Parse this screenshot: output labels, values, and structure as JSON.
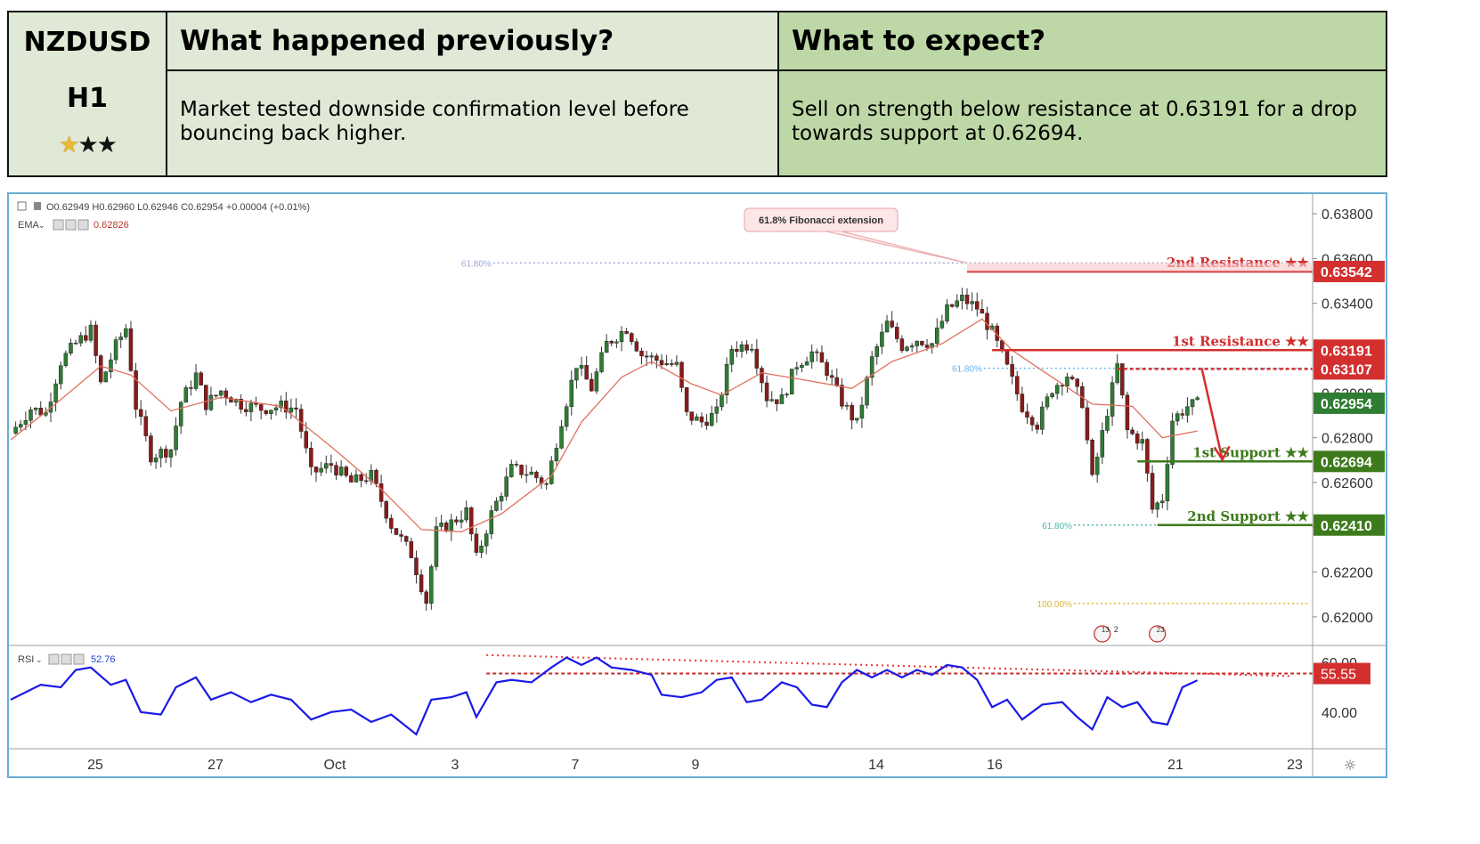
{
  "header": {
    "symbol": "NZDUSD",
    "timeframe": "H1",
    "stars": {
      "filled_gold": 1,
      "black": 2
    },
    "previous": {
      "title": "What happened previously?",
      "text": "Market tested downside confirmation level before bouncing back higher."
    },
    "expect": {
      "title": "What to expect?",
      "text": "Sell on strength below resistance at 0.63191 for a drop towards support at 0.62694."
    }
  },
  "chart_data": {
    "type": "candlestick",
    "symbol": "NZDUSD",
    "timeframe": "H1",
    "ohlc_label": "O0.62949  H0.62960  L0.62946  C0.62954  +0.00004 (+0.01%)",
    "ema_label": "EMA",
    "ema_value": "0.62826",
    "rsi_label": "RSI",
    "rsi_value": "52.76",
    "x_ticks": [
      "25",
      "27",
      "Oct",
      "3",
      "7",
      "9",
      "14",
      "16",
      "21",
      "23"
    ],
    "y_ticks": [
      "0.63800",
      "0.63600",
      "0.63400",
      "0.63200",
      "0.63000",
      "0.62800",
      "0.62600",
      "0.62400",
      "0.62200",
      "0.62000"
    ],
    "y_tick_values": [
      0.638,
      0.636,
      0.634,
      0.632,
      0.63,
      0.628,
      0.626,
      0.624,
      0.622,
      0.62
    ],
    "ylim": [
      0.6194,
      0.6384
    ],
    "rsi_ticks": [
      "60.00",
      "40.00"
    ],
    "rsi_tick_values": [
      60,
      40
    ],
    "rsi_ylim": [
      27,
      64
    ],
    "price_path": [
      {
        "t": 0,
        "p": 0.6282
      },
      {
        "t": 2,
        "p": 0.6293
      },
      {
        "t": 3.5,
        "p": 0.6291
      },
      {
        "t": 5,
        "p": 0.6314
      },
      {
        "t": 6.5,
        "p": 0.6322
      },
      {
        "t": 8,
        "p": 0.6328
      },
      {
        "t": 9,
        "p": 0.6304
      },
      {
        "t": 10.5,
        "p": 0.6321
      },
      {
        "t": 11.5,
        "p": 0.6329
      },
      {
        "t": 12.5,
        "p": 0.6294
      },
      {
        "t": 14,
        "p": 0.6272
      },
      {
        "t": 16,
        "p": 0.6275
      },
      {
        "t": 17,
        "p": 0.6296
      },
      {
        "t": 18.5,
        "p": 0.6308
      },
      {
        "t": 19.5,
        "p": 0.6295
      },
      {
        "t": 21,
        "p": 0.6301
      },
      {
        "t": 23,
        "p": 0.6295
      },
      {
        "t": 25,
        "p": 0.6293
      },
      {
        "t": 27,
        "p": 0.6294
      },
      {
        "t": 28.5,
        "p": 0.6293
      },
      {
        "t": 30,
        "p": 0.6264
      },
      {
        "t": 32,
        "p": 0.6268
      },
      {
        "t": 34,
        "p": 0.626
      },
      {
        "t": 36,
        "p": 0.6263
      },
      {
        "t": 38,
        "p": 0.6241
      },
      {
        "t": 40,
        "p": 0.6228
      },
      {
        "t": 41.5,
        "p": 0.6207
      },
      {
        "t": 42.5,
        "p": 0.6238
      },
      {
        "t": 44,
        "p": 0.6242
      },
      {
        "t": 45.5,
        "p": 0.6247
      },
      {
        "t": 46.5,
        "p": 0.6226
      },
      {
        "t": 48,
        "p": 0.6246
      },
      {
        "t": 50,
        "p": 0.6266
      },
      {
        "t": 52,
        "p": 0.6264
      },
      {
        "t": 53.5,
        "p": 0.6259
      },
      {
        "t": 55,
        "p": 0.6288
      },
      {
        "t": 56.5,
        "p": 0.6313
      },
      {
        "t": 58,
        "p": 0.6302
      },
      {
        "t": 59.5,
        "p": 0.6322
      },
      {
        "t": 61.5,
        "p": 0.6329
      },
      {
        "t": 63,
        "p": 0.6317
      },
      {
        "t": 65,
        "p": 0.6314
      },
      {
        "t": 66.5,
        "p": 0.6312
      },
      {
        "t": 67.5,
        "p": 0.629
      },
      {
        "t": 69,
        "p": 0.6287
      },
      {
        "t": 70.5,
        "p": 0.6291
      },
      {
        "t": 72,
        "p": 0.632
      },
      {
        "t": 74,
        "p": 0.6322
      },
      {
        "t": 75.5,
        "p": 0.6298
      },
      {
        "t": 77,
        "p": 0.6297
      },
      {
        "t": 78.5,
        "p": 0.6313
      },
      {
        "t": 80,
        "p": 0.6318
      },
      {
        "t": 81.5,
        "p": 0.631
      },
      {
        "t": 83,
        "p": 0.6296
      },
      {
        "t": 84.5,
        "p": 0.6286
      },
      {
        "t": 86,
        "p": 0.6315
      },
      {
        "t": 87.5,
        "p": 0.6331
      },
      {
        "t": 89,
        "p": 0.6321
      },
      {
        "t": 90.5,
        "p": 0.6324
      },
      {
        "t": 92,
        "p": 0.6322
      },
      {
        "t": 93.5,
        "p": 0.6337
      },
      {
        "t": 95,
        "p": 0.6342
      },
      {
        "t": 96.5,
        "p": 0.6338
      },
      {
        "t": 98,
        "p": 0.6327
      },
      {
        "t": 99.5,
        "p": 0.6311
      },
      {
        "t": 101,
        "p": 0.6294
      },
      {
        "t": 102.5,
        "p": 0.6286
      },
      {
        "t": 104,
        "p": 0.6302
      },
      {
        "t": 105.5,
        "p": 0.6308
      },
      {
        "t": 107,
        "p": 0.6296
      },
      {
        "t": 108,
        "p": 0.6261
      },
      {
        "t": 109.5,
        "p": 0.6292
      },
      {
        "t": 110.5,
        "p": 0.6312
      },
      {
        "t": 111.5,
        "p": 0.6283
      },
      {
        "t": 113,
        "p": 0.6278
      },
      {
        "t": 114,
        "p": 0.6248
      },
      {
        "t": 115,
        "p": 0.6253
      },
      {
        "t": 116,
        "p": 0.6288
      },
      {
        "t": 117.5,
        "p": 0.6294
      },
      {
        "t": 118.5,
        "p": 0.6295
      }
    ],
    "ema_path": [
      {
        "t": 0,
        "p": 0.6279
      },
      {
        "t": 5,
        "p": 0.6297
      },
      {
        "t": 9,
        "p": 0.6312
      },
      {
        "t": 12,
        "p": 0.6308
      },
      {
        "t": 16,
        "p": 0.6292
      },
      {
        "t": 21,
        "p": 0.6298
      },
      {
        "t": 27,
        "p": 0.6294
      },
      {
        "t": 32,
        "p": 0.6276
      },
      {
        "t": 37,
        "p": 0.6257
      },
      {
        "t": 41,
        "p": 0.6239
      },
      {
        "t": 45,
        "p": 0.6238
      },
      {
        "t": 49,
        "p": 0.6246
      },
      {
        "t": 54,
        "p": 0.6263
      },
      {
        "t": 57,
        "p": 0.6287
      },
      {
        "t": 61,
        "p": 0.6307
      },
      {
        "t": 64,
        "p": 0.6314
      },
      {
        "t": 68,
        "p": 0.6304
      },
      {
        "t": 71,
        "p": 0.6299
      },
      {
        "t": 75,
        "p": 0.6309
      },
      {
        "t": 79,
        "p": 0.6306
      },
      {
        "t": 84,
        "p": 0.6302
      },
      {
        "t": 88,
        "p": 0.6314
      },
      {
        "t": 93,
        "p": 0.6322
      },
      {
        "t": 97,
        "p": 0.6333
      },
      {
        "t": 100,
        "p": 0.6319
      },
      {
        "t": 104,
        "p": 0.6307
      },
      {
        "t": 108,
        "p": 0.6295
      },
      {
        "t": 112,
        "p": 0.6294
      },
      {
        "t": 115,
        "p": 0.628
      },
      {
        "t": 118.5,
        "p": 0.6283
      }
    ],
    "rsi_path": [
      {
        "t": 0,
        "p": 45
      },
      {
        "t": 3,
        "p": 51
      },
      {
        "t": 5,
        "p": 50
      },
      {
        "t": 6.5,
        "p": 57
      },
      {
        "t": 8,
        "p": 58
      },
      {
        "t": 10,
        "p": 51
      },
      {
        "t": 11.5,
        "p": 53
      },
      {
        "t": 13,
        "p": 40
      },
      {
        "t": 15,
        "p": 39
      },
      {
        "t": 16.5,
        "p": 50
      },
      {
        "t": 18.5,
        "p": 54
      },
      {
        "t": 20,
        "p": 45
      },
      {
        "t": 22,
        "p": 48
      },
      {
        "t": 24,
        "p": 44
      },
      {
        "t": 26,
        "p": 47
      },
      {
        "t": 28,
        "p": 45
      },
      {
        "t": 30,
        "p": 37
      },
      {
        "t": 32,
        "p": 40
      },
      {
        "t": 34,
        "p": 41
      },
      {
        "t": 36,
        "p": 36
      },
      {
        "t": 38,
        "p": 39
      },
      {
        "t": 40.5,
        "p": 31
      },
      {
        "t": 42,
        "p": 45
      },
      {
        "t": 44,
        "p": 46
      },
      {
        "t": 45.5,
        "p": 48
      },
      {
        "t": 46.5,
        "p": 38
      },
      {
        "t": 48.5,
        "p": 52
      },
      {
        "t": 50,
        "p": 53
      },
      {
        "t": 52,
        "p": 52
      },
      {
        "t": 54,
        "p": 58
      },
      {
        "t": 55.5,
        "p": 62
      },
      {
        "t": 57,
        "p": 59
      },
      {
        "t": 58.5,
        "p": 62
      },
      {
        "t": 60,
        "p": 58
      },
      {
        "t": 62,
        "p": 57
      },
      {
        "t": 64,
        "p": 55
      },
      {
        "t": 65,
        "p": 47
      },
      {
        "t": 67,
        "p": 46
      },
      {
        "t": 69,
        "p": 48
      },
      {
        "t": 70.5,
        "p": 53
      },
      {
        "t": 72,
        "p": 54
      },
      {
        "t": 73.5,
        "p": 44
      },
      {
        "t": 75,
        "p": 45
      },
      {
        "t": 77,
        "p": 52
      },
      {
        "t": 78.5,
        "p": 50
      },
      {
        "t": 80,
        "p": 43
      },
      {
        "t": 81.5,
        "p": 42
      },
      {
        "t": 83,
        "p": 52
      },
      {
        "t": 84.5,
        "p": 57
      },
      {
        "t": 86,
        "p": 54
      },
      {
        "t": 87.5,
        "p": 57
      },
      {
        "t": 89,
        "p": 54
      },
      {
        "t": 90.5,
        "p": 57
      },
      {
        "t": 92,
        "p": 55
      },
      {
        "t": 93.5,
        "p": 59
      },
      {
        "t": 95,
        "p": 58
      },
      {
        "t": 96.5,
        "p": 53
      },
      {
        "t": 98,
        "p": 42
      },
      {
        "t": 99.5,
        "p": 45
      },
      {
        "t": 101,
        "p": 37
      },
      {
        "t": 103,
        "p": 43
      },
      {
        "t": 105,
        "p": 44
      },
      {
        "t": 106.5,
        "p": 38
      },
      {
        "t": 108,
        "p": 33
      },
      {
        "t": 109.5,
        "p": 46
      },
      {
        "t": 111,
        "p": 42
      },
      {
        "t": 112.5,
        "p": 44
      },
      {
        "t": 114,
        "p": 36
      },
      {
        "t": 115.5,
        "p": 35
      },
      {
        "t": 117,
        "p": 50
      },
      {
        "t": 118.5,
        "p": 52.8
      }
    ],
    "levels": [
      {
        "name": "2nd Resistance",
        "label": "2nd Resistance ★★",
        "value": 0.63542,
        "value_label": "0.63542",
        "color": "#d32f2f",
        "t_start": 95.5
      },
      {
        "name": "1st Resistance",
        "label": "1st Resistance ★★",
        "value": 0.63191,
        "value_label": "0.63191",
        "color": "#d32f2f",
        "t_start": 98
      },
      {
        "name": "Pivot",
        "label": "",
        "value": 0.63107,
        "value_label": "0.63107",
        "color": "#d32f2f",
        "t_start": 110.5,
        "dashed": true
      },
      {
        "name": "1st Support",
        "label": "1st Support ★★",
        "value": 0.62694,
        "value_label": "0.62694",
        "color": "#3d7a1c",
        "t_start": 112.5
      },
      {
        "name": "2nd Support",
        "label": "2nd Support ★★",
        "value": 0.6241,
        "value_label": "0.62410",
        "color": "#3d7a1c",
        "t_start": 114.5
      }
    ],
    "current_price": {
      "value": 0.62954,
      "label": "0.62954",
      "color": "#2e7d32"
    },
    "fib_lines": [
      {
        "label": "61.80%",
        "value": 0.6358,
        "t_start": 48,
        "color": "#9fa8da"
      },
      {
        "label": "61.80%",
        "value": 0.6311,
        "t_start": 97,
        "color": "#64b5f6"
      },
      {
        "label": "61.80%",
        "value": 0.6241,
        "t_start": 106,
        "color": "#4db6ac"
      },
      {
        "label": "100.00%",
        "value": 0.6206,
        "t_start": 106,
        "color": "#e0b531"
      }
    ],
    "fib_annotation": "61.8% Fibonacci extension",
    "rsi_level": {
      "value": 55.55,
      "label": "55.55"
    },
    "rsi_trendline": {
      "t_start": 47.5,
      "v_start": 63,
      "t_end": 128,
      "v_end": 54.5
    },
    "event_markers": [
      {
        "t": 109,
        "count_a": "13",
        "count_b": "2"
      },
      {
        "t": 114.5,
        "count_a": "23",
        "count_b": ""
      }
    ]
  }
}
